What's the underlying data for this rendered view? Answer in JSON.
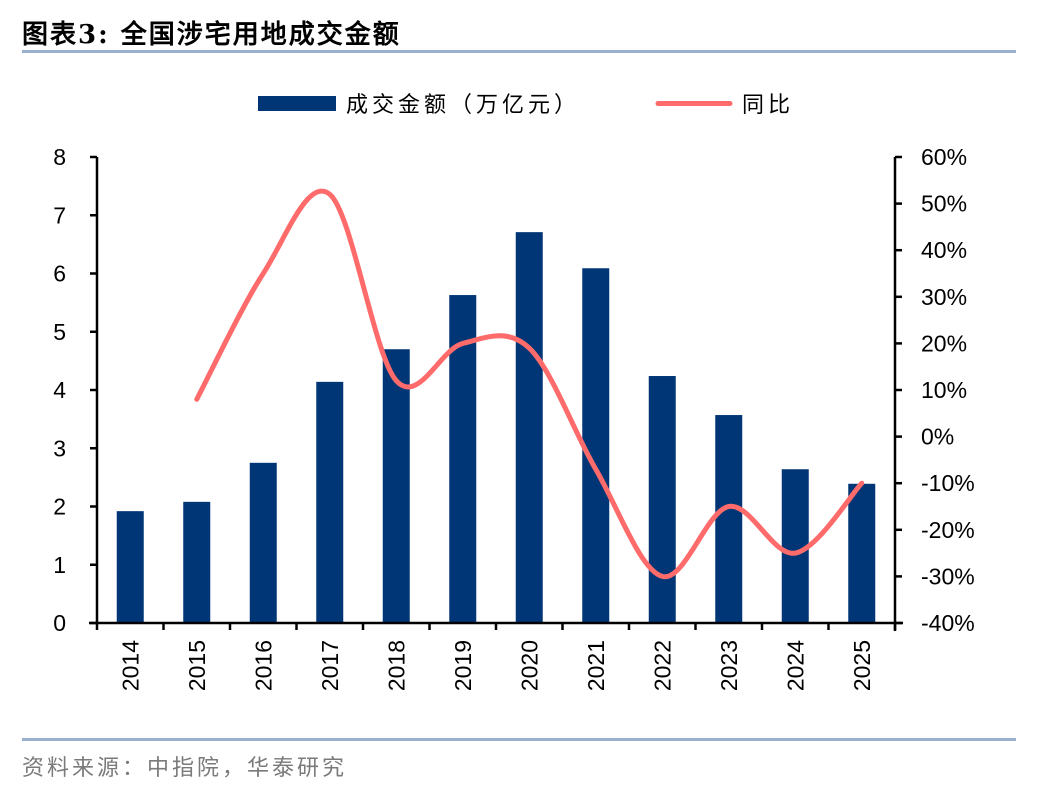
{
  "header": {
    "title": "图表3:   全国涉宅用地成交金额"
  },
  "footer": {
    "source": "资料来源：中指院，华泰研究"
  },
  "colors": {
    "bar": "#003676",
    "line": "#ff6b6b",
    "axis": "#000000",
    "rule": "#98b0cc"
  },
  "chart_data": {
    "type": "bar+line",
    "title": "全国涉宅用地成交金额",
    "categories": [
      "2014",
      "2015",
      "2016",
      "2017",
      "2018",
      "2019",
      "2020",
      "2021",
      "2022",
      "2023",
      "2024",
      "2025"
    ],
    "series": [
      {
        "name": "成交金额（万亿元）",
        "type": "bar",
        "axis": "left",
        "values": [
          1.92,
          2.08,
          2.75,
          4.14,
          4.7,
          5.63,
          6.71,
          6.09,
          4.24,
          3.57,
          2.64,
          2.39
        ]
      },
      {
        "name": "同比",
        "type": "line",
        "axis": "right",
        "values": [
          null,
          8,
          35,
          52,
          12,
          20,
          19,
          -7,
          -30,
          -15,
          -25,
          -10
        ]
      }
    ],
    "y_left": {
      "range": [
        0,
        8
      ],
      "ticks": [
        "0",
        "1",
        "2",
        "3",
        "4",
        "5",
        "6",
        "7",
        "8"
      ]
    },
    "y_right": {
      "range": [
        -40,
        60
      ],
      "ticks": [
        "-40%",
        "-30%",
        "-20%",
        "-10%",
        "0%",
        "10%",
        "20%",
        "30%",
        "40%",
        "50%",
        "60%"
      ]
    },
    "legend": {
      "placement": "top",
      "entries": [
        "成交金额（万亿元）",
        "同比"
      ]
    },
    "grid": false
  }
}
